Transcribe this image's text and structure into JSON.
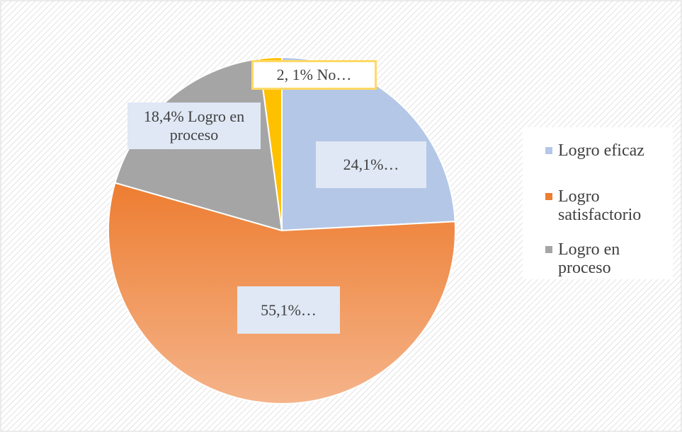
{
  "chart_data": {
    "type": "pie",
    "categories": [
      "Logro eficaz",
      "Logro satisfactorio",
      "Logro en proceso",
      null
    ],
    "values": [
      24.1,
      55.1,
      18.4,
      2.1
    ],
    "value_labels": [
      "24,1%…",
      "55,1%…",
      "18,4% Logro en proceso",
      "2, 1% No…"
    ],
    "colors": [
      "#b4c7e7",
      "#ed7d31",
      "#a5a5a5",
      "#ffc000"
    ],
    "legend": "right"
  }
}
